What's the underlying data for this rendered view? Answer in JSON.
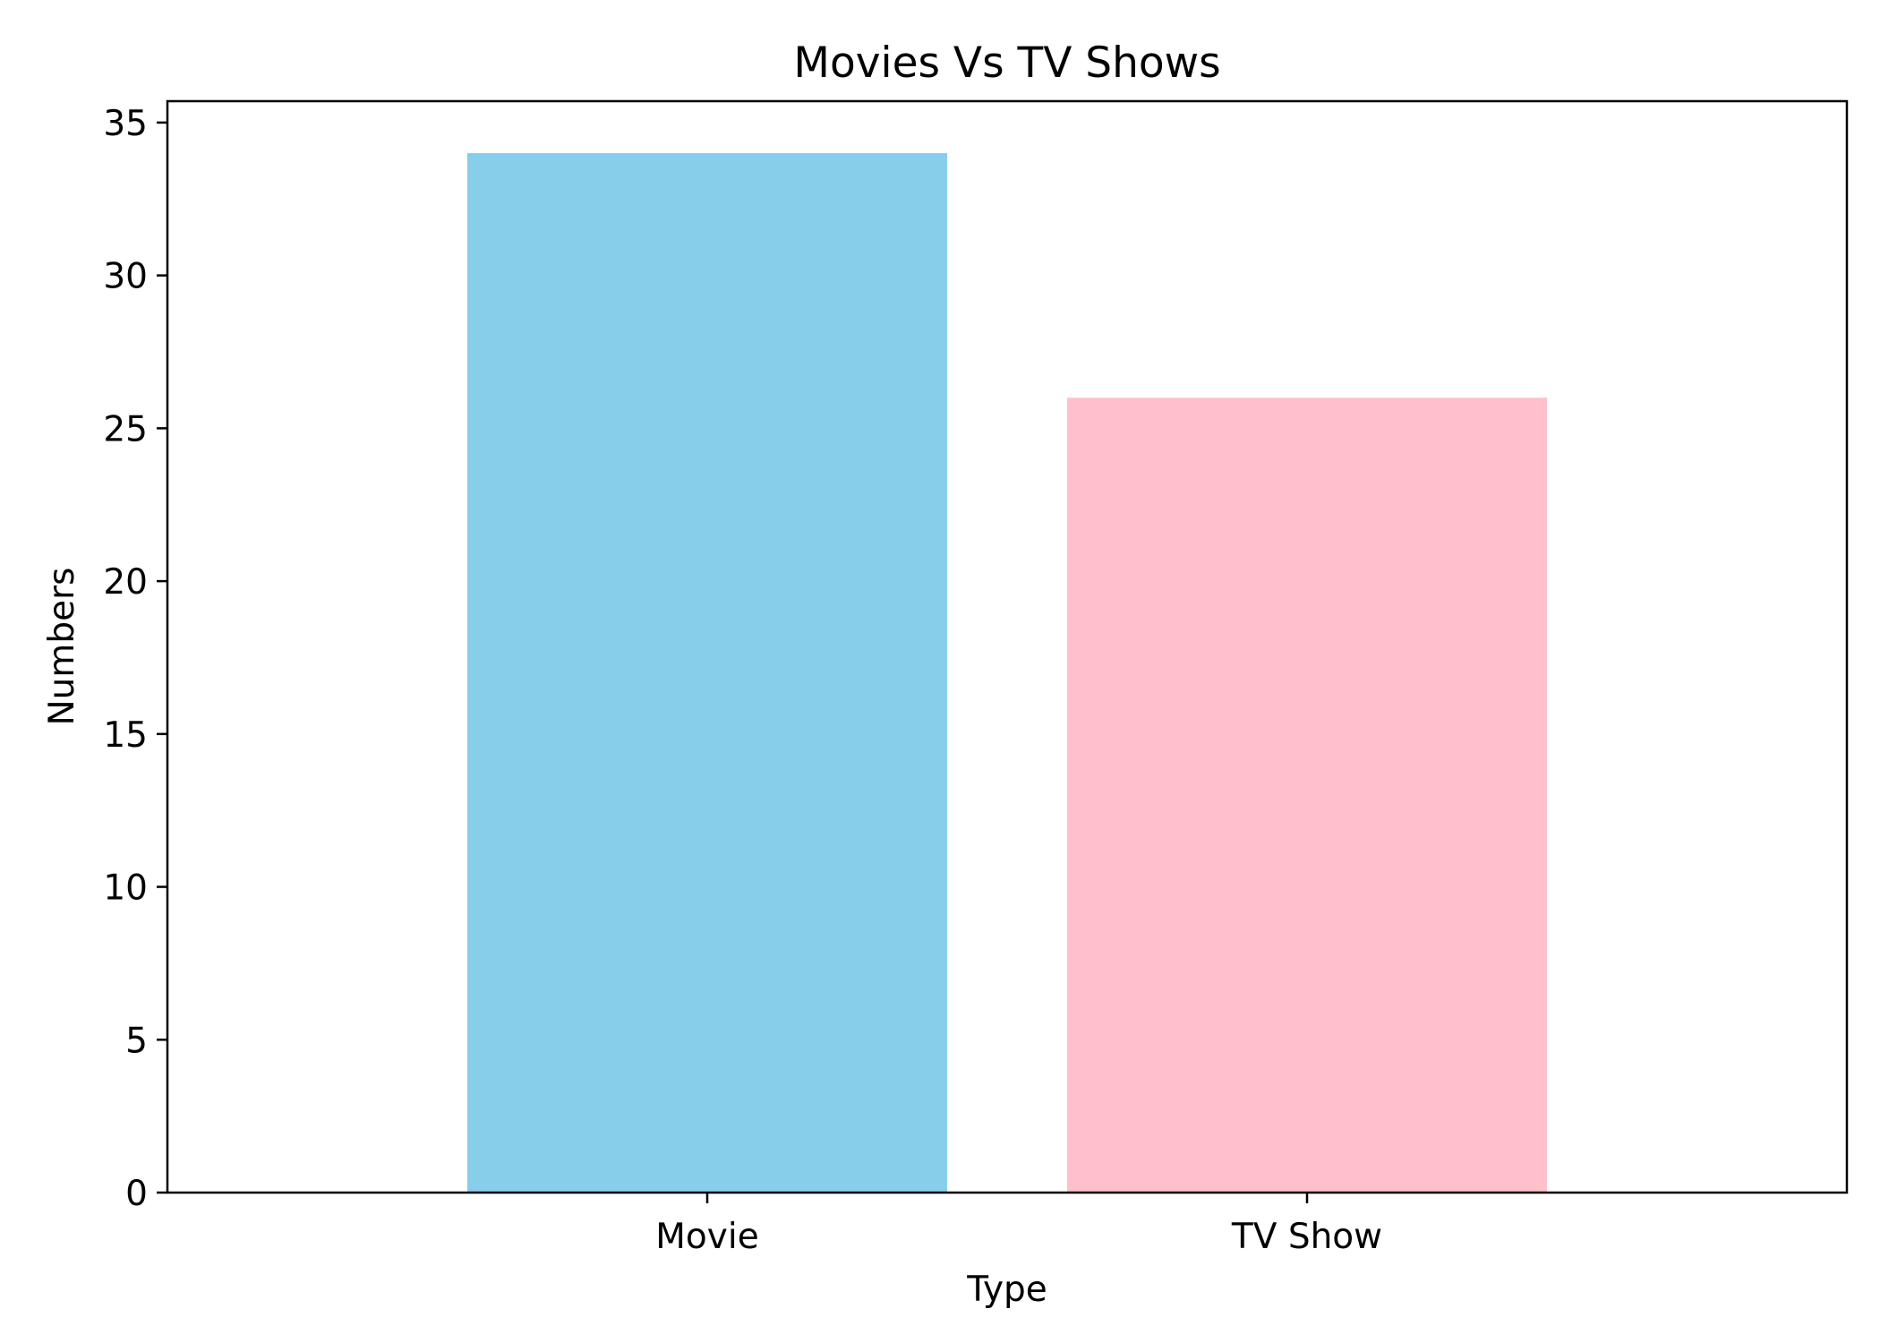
{
  "chart_data": {
    "type": "bar",
    "title": "Movies Vs TV Shows",
    "xlabel": "Type",
    "ylabel": "Numbers",
    "categories": [
      "Movie",
      "TV Show"
    ],
    "values": [
      34,
      26
    ],
    "colors": [
      "#87CEEB",
      "#FFC0CB"
    ],
    "ylim": [
      0,
      35.7
    ],
    "yticks": [
      0,
      5,
      10,
      15,
      20,
      25,
      30,
      35
    ],
    "grid": false,
    "legend": "none"
  }
}
